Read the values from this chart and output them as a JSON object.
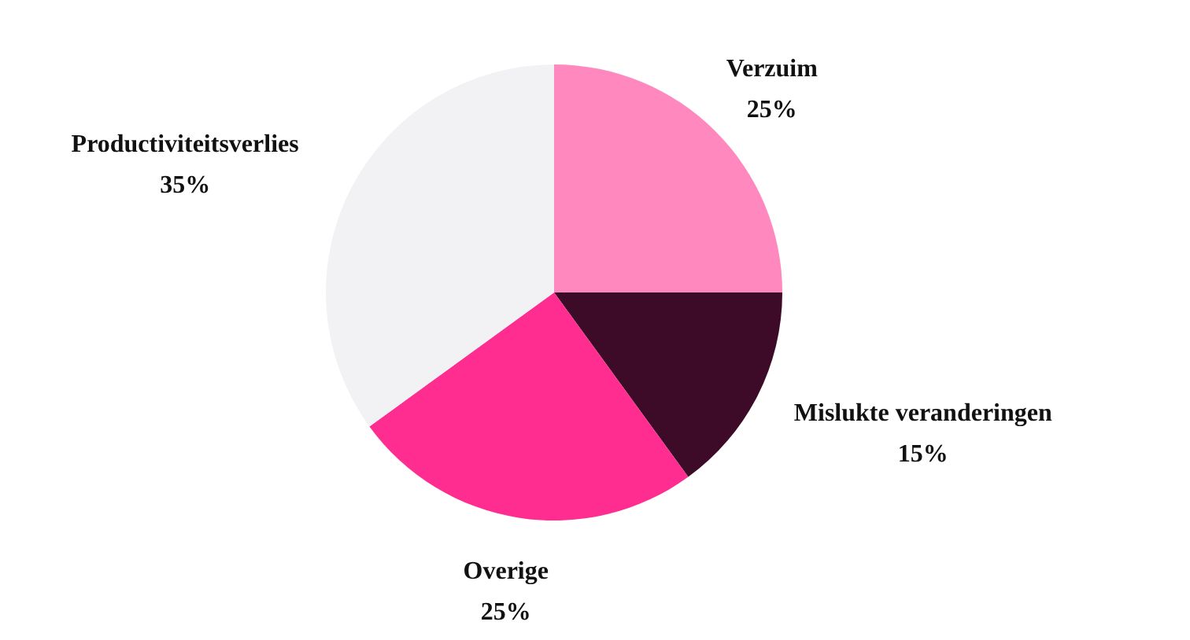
{
  "chart_data": {
    "type": "pie",
    "categories": [
      "Verzuim",
      "Mislukte veranderingen",
      "Overige",
      "Productiviteitsverlies"
    ],
    "values": [
      25,
      15,
      25,
      35
    ],
    "colors": [
      "#ff88bf",
      "#3d0a28",
      "#ff2d8f",
      "#f2f2f4"
    ],
    "value_labels": [
      "25%",
      "15%",
      "25%",
      "35%"
    ]
  }
}
